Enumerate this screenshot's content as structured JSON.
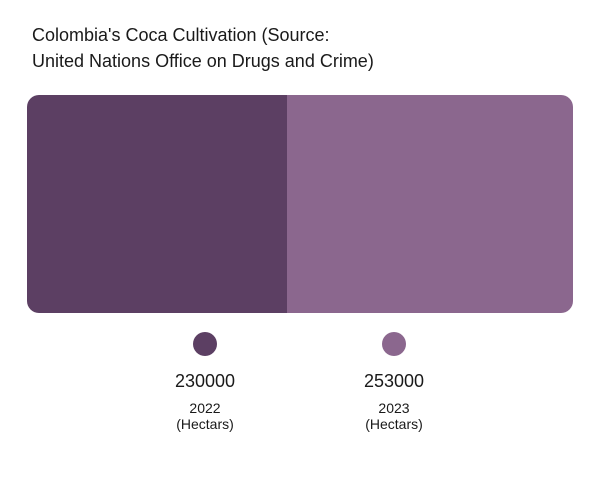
{
  "chart_data": {
    "type": "bar",
    "title": "Colombia's Coca Cultivation (Source:\nUnited Nations Office on Drugs and Crime)",
    "categories": [
      "2022\n(Hectars)",
      "2023\n(Hectars)"
    ],
    "values": [
      230000,
      253000
    ],
    "value_labels": [
      "230000",
      "253000"
    ],
    "colors": [
      "#5c3f63",
      "#8b678e"
    ],
    "orientation": "horizontal-stacked-share",
    "legend_position": "bottom"
  }
}
